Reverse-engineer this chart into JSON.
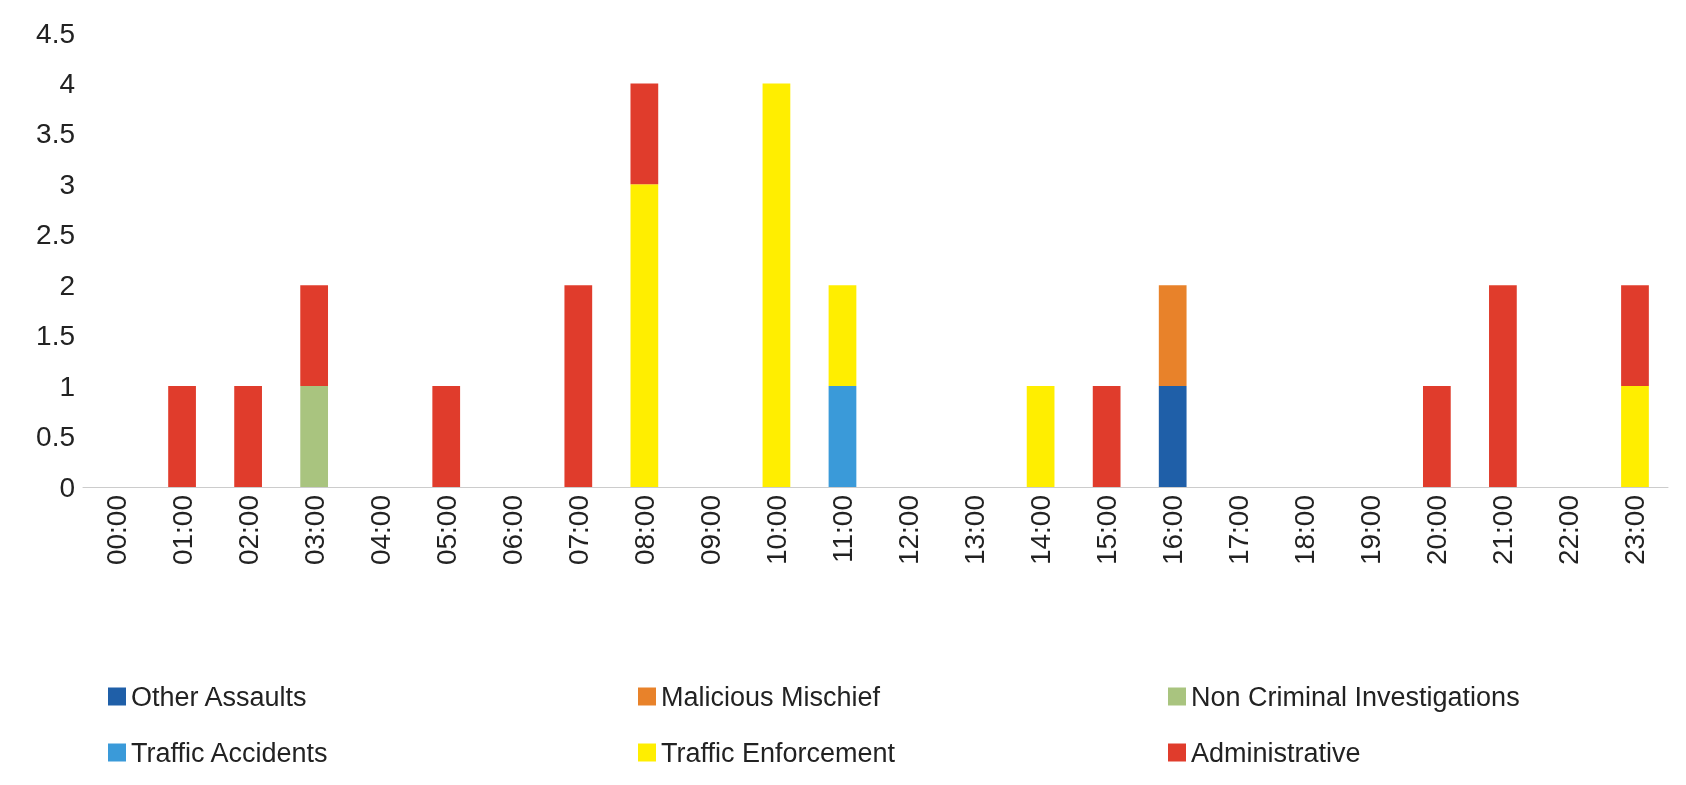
{
  "chart_data": {
    "type": "bar",
    "stacked": true,
    "categories": [
      "00:00",
      "01:00",
      "02:00",
      "03:00",
      "04:00",
      "05:00",
      "06:00",
      "07:00",
      "08:00",
      "09:00",
      "10:00",
      "11:00",
      "12:00",
      "13:00",
      "14:00",
      "15:00",
      "16:00",
      "17:00",
      "18:00",
      "19:00",
      "20:00",
      "21:00",
      "22:00",
      "23:00"
    ],
    "series": [
      {
        "name": "Other Assaults",
        "color": "#1f5fa8",
        "values": [
          null,
          null,
          null,
          null,
          null,
          null,
          null,
          null,
          null,
          null,
          null,
          null,
          null,
          null,
          null,
          null,
          1,
          null,
          null,
          null,
          null,
          null,
          null,
          null
        ]
      },
      {
        "name": "Malicious Mischief",
        "color": "#e8822a",
        "values": [
          null,
          null,
          null,
          null,
          null,
          null,
          null,
          null,
          null,
          null,
          null,
          null,
          null,
          null,
          null,
          null,
          1,
          null,
          null,
          null,
          null,
          null,
          null,
          null
        ]
      },
      {
        "name": "Non Criminal Investigations",
        "color": "#a9c47f",
        "values": [
          null,
          null,
          null,
          1,
          null,
          null,
          null,
          null,
          null,
          null,
          null,
          null,
          null,
          null,
          null,
          null,
          null,
          null,
          null,
          null,
          null,
          null,
          null,
          null
        ]
      },
      {
        "name": "Traffic Accidents",
        "color": "#3a9ad9",
        "values": [
          null,
          null,
          null,
          null,
          null,
          null,
          null,
          null,
          null,
          null,
          null,
          1,
          null,
          null,
          null,
          null,
          null,
          null,
          null,
          null,
          null,
          null,
          null,
          null
        ]
      },
      {
        "name": "Traffic Enforcement",
        "color": "#ffee00",
        "values": [
          null,
          null,
          null,
          null,
          null,
          null,
          null,
          null,
          3,
          null,
          4,
          1,
          null,
          null,
          1,
          null,
          null,
          null,
          null,
          null,
          null,
          null,
          null,
          1
        ]
      },
      {
        "name": "Administrative",
        "color": "#e03c2c",
        "values": [
          null,
          1,
          1,
          1,
          null,
          1,
          null,
          2,
          1,
          null,
          null,
          null,
          null,
          null,
          null,
          1,
          null,
          null,
          null,
          null,
          1,
          2,
          null,
          1
        ]
      }
    ],
    "ylim": [
      0,
      4.5
    ],
    "yticks": [
      0,
      0.5,
      1,
      1.5,
      2,
      2.5,
      3,
      3.5,
      4,
      4.5
    ],
    "grid": false,
    "legend": "bottom"
  }
}
